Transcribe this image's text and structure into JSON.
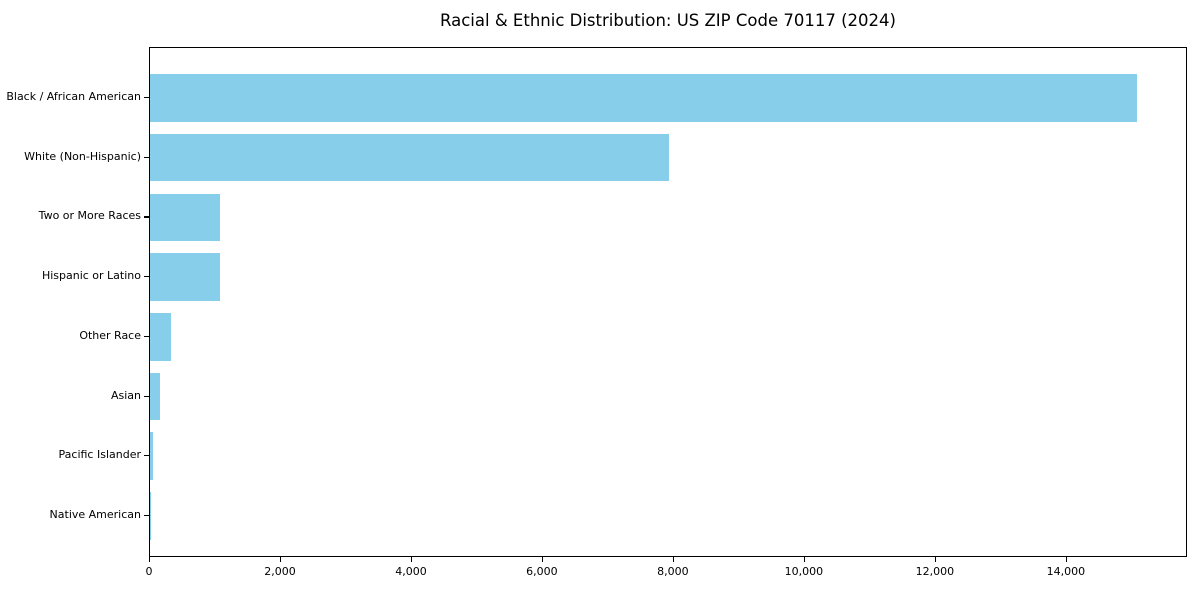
{
  "chart_data": {
    "type": "bar",
    "orientation": "horizontal",
    "title": "Racial & Ethnic Distribution: US ZIP Code 70117 (2024)",
    "categories": [
      "Black / African American",
      "White (Non-Hispanic)",
      "Two or More Races",
      "Hispanic or Latino",
      "Other Race",
      "Asian",
      "Pacific Islander",
      "Native American"
    ],
    "values": [
      15070,
      7920,
      1070,
      1065,
      320,
      150,
      40,
      8
    ],
    "bar_color": "#87ceeb",
    "xlabel": "",
    "ylabel": "",
    "xlim": [
      0,
      15850
    ],
    "x_ticks": [
      0,
      2000,
      4000,
      6000,
      8000,
      10000,
      12000,
      14000
    ],
    "grid": false,
    "legend": null
  }
}
